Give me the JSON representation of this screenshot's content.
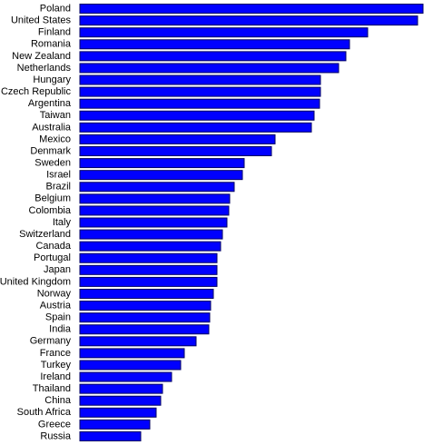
{
  "chart_data": {
    "type": "bar",
    "orientation": "horizontal",
    "color": "#0000ff",
    "categories": [
      "Poland",
      "United States",
      "Finland",
      "Romania",
      "New Zealand",
      "Netherlands",
      "Hungary",
      "Czech Republic",
      "Argentina",
      "Taiwan",
      "Australia",
      "Mexico",
      "Denmark",
      "Sweden",
      "Israel",
      "Brazil",
      "Belgium",
      "Colombia",
      "Italy",
      "Switzerland",
      "Canada",
      "Portugal",
      "Japan",
      "United Kingdom",
      "Norway",
      "Austria",
      "Spain",
      "India",
      "Germany",
      "France",
      "Turkey",
      "Ireland",
      "Thailand",
      "China",
      "South Africa",
      "Greece",
      "Russia"
    ],
    "values": [
      378,
      372,
      317,
      297,
      293,
      285,
      265,
      265,
      264,
      258,
      255,
      215,
      211,
      181,
      179,
      170,
      165,
      164,
      162,
      157,
      155,
      151,
      151,
      151,
      147,
      144,
      143,
      142,
      128,
      115,
      111,
      101,
      91,
      89,
      84,
      77,
      67
    ]
  }
}
